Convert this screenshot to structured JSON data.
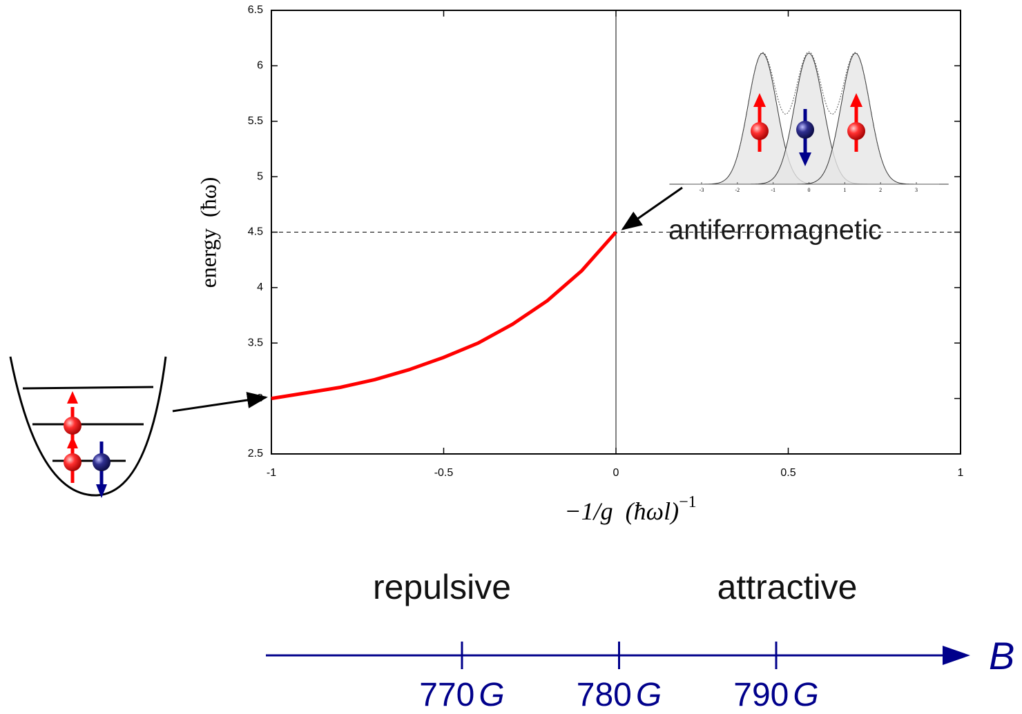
{
  "chart_data": {
    "type": "line",
    "x_label": "−1/g  (ħωl)",
    "x_label_superscript": "−1",
    "y_label": "energy  (ħω)",
    "x": [
      -1,
      -0.9,
      -0.8,
      -0.7,
      -0.6,
      -0.5,
      -0.4,
      -0.3,
      -0.2,
      -0.1,
      0
    ],
    "values": [
      3.0,
      3.05,
      3.1,
      3.17,
      3.26,
      3.37,
      3.5,
      3.67,
      3.88,
      4.15,
      4.5
    ],
    "color": "#ff0000",
    "xlim": [
      -1,
      1
    ],
    "ylim": [
      2.5,
      6.5
    ],
    "xticks": [
      -1,
      -0.5,
      0,
      0.5,
      1
    ],
    "yticks": [
      2.5,
      3,
      3.5,
      4,
      4.5,
      5,
      5.5,
      6,
      6.5
    ],
    "hline": 4.5,
    "vline": 0,
    "annotation": "antiferromagnetic",
    "regimes": [
      "repulsive",
      "attractive"
    ],
    "field_axis": {
      "label": "B",
      "ticks": [
        770,
        780,
        790
      ],
      "unit": "G",
      "color": "#00008b"
    },
    "inset": {
      "xticks": [
        -3,
        -2,
        -1,
        0,
        1,
        2,
        3
      ]
    }
  }
}
